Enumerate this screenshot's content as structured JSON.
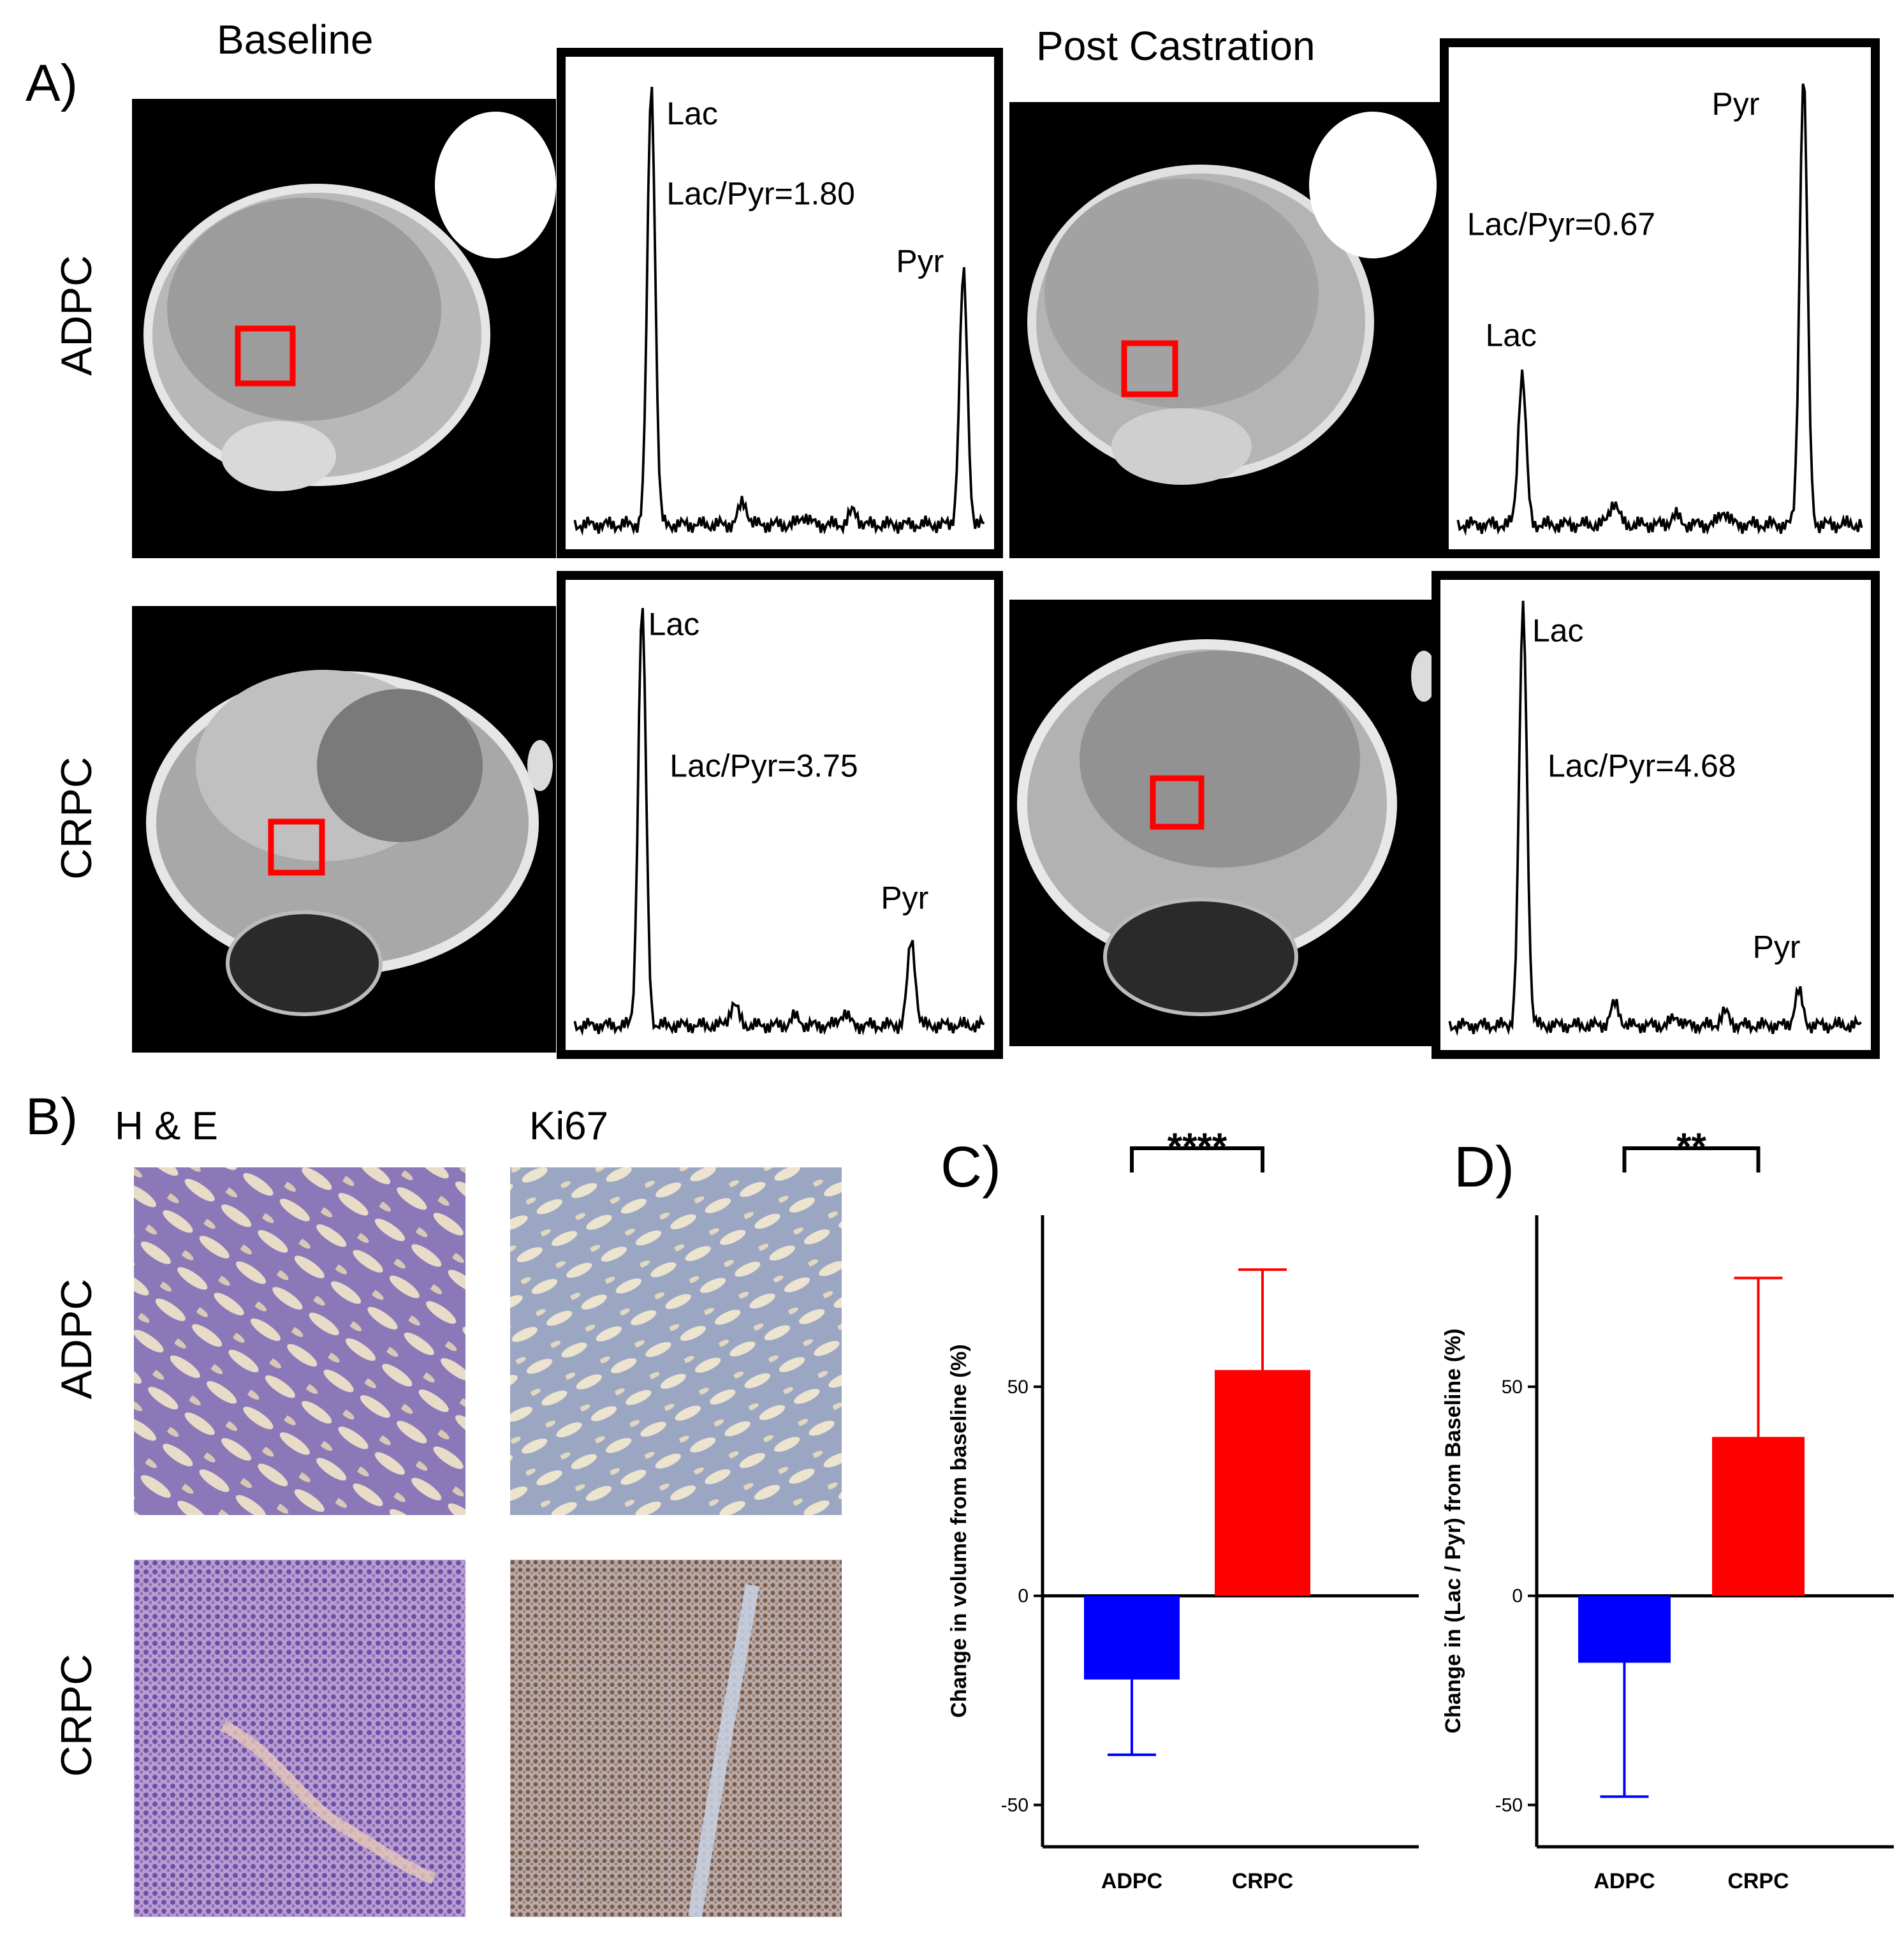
{
  "panel_a": {
    "letter": "A)",
    "col_baseline": "Baseline",
    "col_post": "Post Castration",
    "row_adpc": "ADPC",
    "row_crpc": "CRPC",
    "spectra": [
      {
        "lac_label": "Lac",
        "pyr_label": "Pyr",
        "ratio_text": "Lac/Pyr=1.80",
        "lac_peak": 0.98,
        "pyr_peak": 0.56
      },
      {
        "lac_label": "Lac",
        "pyr_label": "Pyr",
        "ratio_text": "Lac/Pyr=0.67",
        "lac_peak": 0.33,
        "pyr_peak": 0.98
      },
      {
        "lac_label": "Lac",
        "pyr_label": "Pyr",
        "ratio_text": "Lac/Pyr=3.75",
        "lac_peak": 0.98,
        "pyr_peak": 0.2
      },
      {
        "lac_label": "Lac",
        "pyr_label": "Pyr",
        "ratio_text": "Lac/Pyr=4.68",
        "lac_peak": 0.98,
        "pyr_peak": 0.08
      }
    ],
    "roi_color": "#ff0000"
  },
  "panel_b": {
    "letter": "B)",
    "col_he": "H & E",
    "col_ki67": "Ki67",
    "row_adpc": "ADPC",
    "row_crpc": "CRPC"
  },
  "chart_data": [
    {
      "panel": "C)",
      "type": "bar",
      "categories": [
        "ADPC",
        "CRPC"
      ],
      "values": [
        -20,
        54
      ],
      "errors": [
        18,
        24
      ],
      "colors": [
        "#0000ff",
        "#ff0000"
      ],
      "ylabel": "Change in volume from baseline (%)",
      "yticks": [
        -50,
        0,
        50
      ],
      "ylim": [
        -60,
        91
      ],
      "significance": "****"
    },
    {
      "panel": "D)",
      "type": "bar",
      "categories": [
        "ADPC",
        "CRPC"
      ],
      "values": [
        -16,
        38
      ],
      "errors": [
        32,
        38
      ],
      "colors": [
        "#0000ff",
        "#ff0000"
      ],
      "ylabel": "Change in (Lac / Pyr) from Baseline (%)",
      "yticks": [
        -50,
        0,
        50
      ],
      "ylim": [
        -60,
        91
      ],
      "significance": "**"
    }
  ]
}
